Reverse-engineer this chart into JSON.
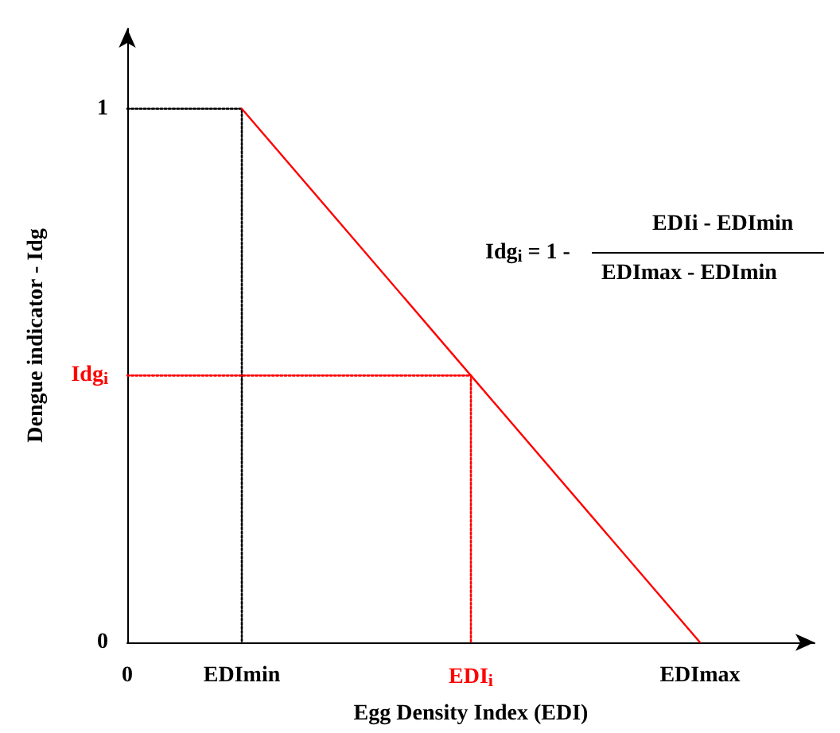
{
  "chart_data": {
    "type": "line",
    "xlabel": "Egg Density Index (EDI)",
    "ylabel": "Dengue indicator - Idg",
    "annotations": [
      "Idg$_{i}$ = 1 -",
      "EDIi - EDImin",
      "EDImax - EDImin"
    ],
    "categories": [
      "0",
      "EDImin",
      null,
      "EDI$_{i}$",
      null,
      "EDImax",
      null
    ],
    "ylim": [
      0,
      1.15
    ],
    "yticks": [
      0,
      {
        "value": 0.5,
        "label": "Idg$_{i}$"
      },
      1
    ],
    "grid": false,
    "marker": "none",
    "series": [
      {
        "color": "#ff0000",
        "values": [
          null,
          1,
          null,
          0.5,
          null,
          0,
          null
        ],
        "line_style": "solid"
      },
      {
        "color": "#000000",
        "x": [
          "0",
          "EDImin",
          "EDImin"
        ],
        "values": [
          1,
          1,
          0
        ],
        "line_style": "dotted"
      },
      {
        "color": "#ff0000",
        "x": [
          "0",
          "EDI$_{i}$",
          "EDI$_{i}$"
        ],
        "values": [
          0.5,
          0.5,
          0
        ],
        "line_style": "dotted"
      }
    ]
  }
}
